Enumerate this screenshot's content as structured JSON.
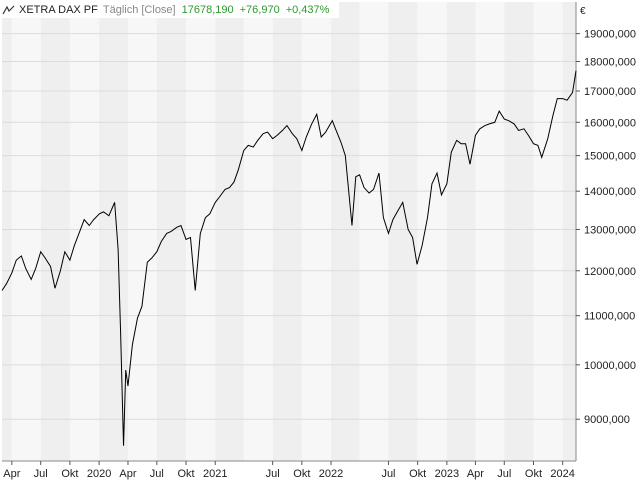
{
  "header": {
    "name": "XETRA DAX PF",
    "mode": "Täglich [Close]",
    "last": "17678,190",
    "change": "+76,970",
    "change_pct": "+0,437%"
  },
  "colors": {
    "line": "#000000",
    "band_a": "#efefef",
    "band_b": "#f7f7f7",
    "positive": "#2e9a2e",
    "grid": "#dcdcdc"
  },
  "chart_data": {
    "type": "line",
    "y_unit": "€",
    "y_scale": "log",
    "ylim": [
      8300,
      20200
    ],
    "y_ticks": [
      "9000,000",
      "10000,000",
      "11000,000",
      "12000,000",
      "13000,000",
      "14000,000",
      "15000,000",
      "16000,000",
      "17000,000",
      "18000,000",
      "19000,000"
    ],
    "y_tick_values": [
      9000,
      10000,
      11000,
      12000,
      13000,
      14000,
      15000,
      16000,
      17000,
      18000,
      19000
    ],
    "x_range": [
      "2019-03-01",
      "2024-02-12"
    ],
    "x_ticks": [
      "Apr",
      "Jul",
      "Okt",
      "2020",
      "Apr",
      "Jul",
      "Okt",
      "2021",
      "Jul",
      "Okt",
      "2022",
      "Jul",
      "Okt",
      "2023",
      "Apr",
      "Jul",
      "Okt",
      "2024"
    ],
    "x_tick_dates": [
      "2019-04-01",
      "2019-07-01",
      "2019-10-01",
      "2020-01-01",
      "2020-04-01",
      "2020-07-01",
      "2020-10-01",
      "2021-01-01",
      "2021-07-01",
      "2021-10-01",
      "2022-01-01",
      "2022-07-01",
      "2022-10-01",
      "2023-01-01",
      "2023-04-01",
      "2023-07-01",
      "2023-10-01",
      "2024-01-01"
    ],
    "series": [
      {
        "x": [
          "2019-03-01",
          "2019-03-15",
          "2019-04-01",
          "2019-04-15",
          "2019-05-01",
          "2019-05-15",
          "2019-06-01",
          "2019-06-15",
          "2019-07-01",
          "2019-07-15",
          "2019-08-01",
          "2019-08-15",
          "2019-09-01",
          "2019-09-15",
          "2019-10-01",
          "2019-10-15",
          "2019-11-01",
          "2019-11-15",
          "2019-12-01",
          "2019-12-15",
          "2020-01-02",
          "2020-01-15",
          "2020-02-01",
          "2020-02-19",
          "2020-03-01",
          "2020-03-09",
          "2020-03-18",
          "2020-03-25",
          "2020-04-01",
          "2020-04-15",
          "2020-05-01",
          "2020-05-15",
          "2020-06-01",
          "2020-06-15",
          "2020-07-01",
          "2020-07-15",
          "2020-08-01",
          "2020-08-15",
          "2020-09-01",
          "2020-09-15",
          "2020-10-01",
          "2020-10-15",
          "2020-10-30",
          "2020-11-15",
          "2020-12-01",
          "2020-12-15",
          "2021-01-01",
          "2021-01-15",
          "2021-02-01",
          "2021-02-15",
          "2021-03-01",
          "2021-03-15",
          "2021-04-01",
          "2021-04-15",
          "2021-05-01",
          "2021-05-15",
          "2021-06-01",
          "2021-06-15",
          "2021-07-01",
          "2021-07-15",
          "2021-08-01",
          "2021-08-15",
          "2021-09-01",
          "2021-09-15",
          "2021-10-01",
          "2021-10-15",
          "2021-11-01",
          "2021-11-17",
          "2021-12-01",
          "2021-12-15",
          "2022-01-05",
          "2022-01-15",
          "2022-02-01",
          "2022-02-15",
          "2022-03-08",
          "2022-03-20",
          "2022-04-01",
          "2022-04-15",
          "2022-05-01",
          "2022-05-15",
          "2022-06-01",
          "2022-06-15",
          "2022-07-01",
          "2022-07-15",
          "2022-08-01",
          "2022-08-15",
          "2022-09-01",
          "2022-09-15",
          "2022-09-29",
          "2022-10-15",
          "2022-11-01",
          "2022-11-15",
          "2022-12-01",
          "2022-12-15",
          "2023-01-01",
          "2023-01-15",
          "2023-02-01",
          "2023-02-15",
          "2023-03-01",
          "2023-03-15",
          "2023-04-01",
          "2023-04-15",
          "2023-05-01",
          "2023-05-15",
          "2023-06-01",
          "2023-06-15",
          "2023-07-01",
          "2023-07-15",
          "2023-08-01",
          "2023-08-15",
          "2023-09-01",
          "2023-09-15",
          "2023-10-01",
          "2023-10-15",
          "2023-10-27",
          "2023-11-15",
          "2023-12-01",
          "2023-12-15",
          "2024-01-01",
          "2024-01-15",
          "2024-02-01",
          "2024-02-12"
        ],
        "y": [
          11550,
          11700,
          11950,
          12250,
          12350,
          12050,
          11800,
          12050,
          12450,
          12300,
          12100,
          11600,
          12000,
          12450,
          12250,
          12600,
          12950,
          13250,
          13100,
          13250,
          13400,
          13450,
          13350,
          13700,
          12500,
          10600,
          8550,
          9900,
          9600,
          10400,
          10950,
          11200,
          12200,
          12300,
          12450,
          12700,
          12900,
          12950,
          13050,
          13100,
          12750,
          12800,
          11550,
          12900,
          13300,
          13400,
          13700,
          13850,
          14050,
          14100,
          14250,
          14600,
          15150,
          15300,
          15250,
          15450,
          15650,
          15700,
          15500,
          15600,
          15750,
          15900,
          15650,
          15500,
          15150,
          15550,
          15950,
          16250,
          15550,
          15700,
          16050,
          15800,
          15400,
          15000,
          13100,
          14400,
          14450,
          14100,
          13950,
          14050,
          14500,
          13300,
          12900,
          13250,
          13500,
          13700,
          13000,
          12800,
          12150,
          12600,
          13300,
          14200,
          14500,
          13900,
          14200,
          15100,
          15450,
          15350,
          15350,
          14750,
          15600,
          15800,
          15900,
          15950,
          16000,
          16350,
          16100,
          16050,
          15950,
          15750,
          15800,
          15600,
          15350,
          15300,
          14950,
          15500,
          16200,
          16750,
          16750,
          16700,
          16950,
          17680
        ]
      }
    ]
  }
}
